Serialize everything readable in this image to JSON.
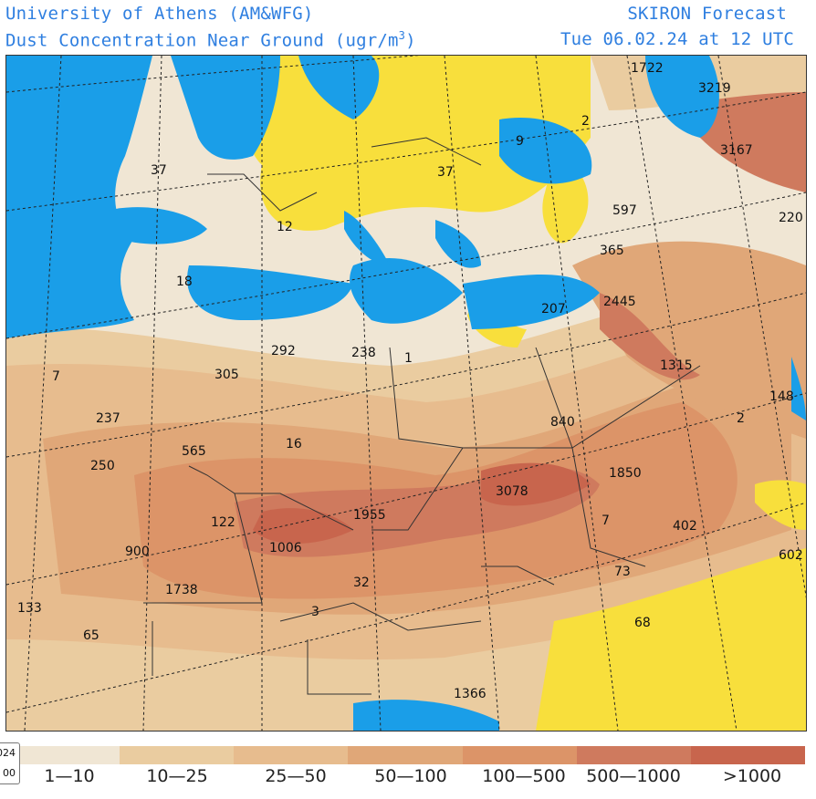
{
  "header": {
    "institution": "University of Athens (AM&WFG)",
    "product": "SKIRON Forecast",
    "variable": "Dust Concentration Near Ground (ugr/m",
    "unit_exponent": "3",
    "unit_close": ")",
    "valid_time": "Tue 06.02.24 at 12 UTC"
  },
  "legend": {
    "categories": [
      {
        "label": "1—10",
        "color": "#f0e6d4"
      },
      {
        "label": "10—25",
        "color": "#eacca0"
      },
      {
        "label": "25—50",
        "color": "#e7bc8e"
      },
      {
        "label": "50—100",
        "color": "#e0a778"
      },
      {
        "label": "100—500",
        "color": "#dc9468"
      },
      {
        "label": "500—1000",
        "color": "#cf7a5e"
      },
      {
        "label": ">1000",
        "color": "#c8654d"
      }
    ]
  },
  "date_widget": {
    "line1": "024",
    "line2": "00"
  },
  "colors": {
    "sea": "#1a9ee8",
    "no_dust": "#f8df3c",
    "land_low": "#f0e6d4",
    "title": "#2f7fe0"
  },
  "map_values": [
    {
      "text": "1722"
    },
    {
      "text": "3219"
    },
    {
      "text": "2"
    },
    {
      "text": "3167"
    },
    {
      "text": "9"
    },
    {
      "text": "37"
    },
    {
      "text": "37"
    },
    {
      "text": "12"
    },
    {
      "text": "597"
    },
    {
      "text": "220"
    },
    {
      "text": "365"
    },
    {
      "text": "18"
    },
    {
      "text": "2445"
    },
    {
      "text": "207"
    },
    {
      "text": "292"
    },
    {
      "text": "238"
    },
    {
      "text": "1"
    },
    {
      "text": "1315"
    },
    {
      "text": "305"
    },
    {
      "text": "7"
    },
    {
      "text": "148"
    },
    {
      "text": "237"
    },
    {
      "text": "2"
    },
    {
      "text": "840"
    },
    {
      "text": "565"
    },
    {
      "text": "16"
    },
    {
      "text": "250"
    },
    {
      "text": "1850"
    },
    {
      "text": "3078"
    },
    {
      "text": "122"
    },
    {
      "text": "1955"
    },
    {
      "text": "7"
    },
    {
      "text": "402"
    },
    {
      "text": "900"
    },
    {
      "text": "1006"
    },
    {
      "text": "602"
    },
    {
      "text": "73"
    },
    {
      "text": "32"
    },
    {
      "text": "1738"
    },
    {
      "text": "133"
    },
    {
      "text": "3"
    },
    {
      "text": "68"
    },
    {
      "text": "65"
    },
    {
      "text": "1366"
    }
  ]
}
